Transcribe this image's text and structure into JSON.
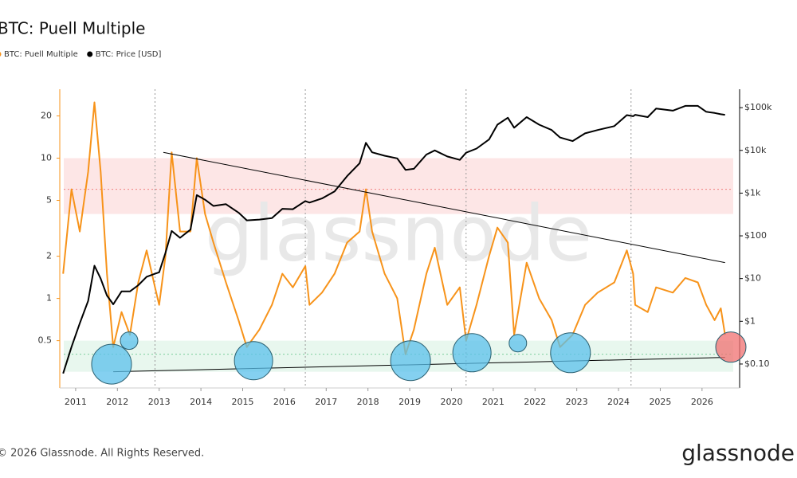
{
  "chart_data": {
    "type": "line",
    "title": "BTC: Puell Multiple",
    "footer": "© 2026 Glassnode. All Rights Reserved.",
    "logo": "glassnode",
    "watermark": "glassnode",
    "x": [
      2010.7,
      2010.9,
      2011.1,
      2011.3,
      2011.45,
      2011.6,
      2011.75,
      2011.9,
      2012.1,
      2012.3,
      2012.5,
      2012.7,
      2012.9,
      2013.0,
      2013.15,
      2013.3,
      2013.5,
      2013.75,
      2013.9,
      2014.1,
      2014.3,
      2014.6,
      2014.9,
      2015.1,
      2015.4,
      2015.7,
      2015.95,
      2016.2,
      2016.5,
      2016.6,
      2016.9,
      2017.2,
      2017.5,
      2017.8,
      2017.95,
      2018.1,
      2018.4,
      2018.7,
      2018.9,
      2019.1,
      2019.4,
      2019.6,
      2019.9,
      2020.2,
      2020.35,
      2020.6,
      2020.9,
      2021.1,
      2021.35,
      2021.5,
      2021.8,
      2022.1,
      2022.4,
      2022.6,
      2022.9,
      2023.2,
      2023.5,
      2023.9,
      2024.2,
      2024.35,
      2024.4,
      2024.7,
      2024.9,
      2025.3,
      2025.6,
      2025.9,
      2026.1,
      2026.3,
      2026.45,
      2026.55
    ],
    "series": [
      {
        "name": "BTC: Puell Multiple",
        "color": "#f7931a",
        "axis": "y",
        "values": [
          1.5,
          6,
          3,
          8,
          25,
          8,
          1.5,
          0.45,
          0.8,
          0.55,
          1.3,
          2.2,
          1.2,
          0.9,
          2,
          11,
          3,
          3,
          10,
          4,
          2.5,
          1.3,
          0.7,
          0.45,
          0.6,
          0.9,
          1.5,
          1.2,
          1.7,
          0.9,
          1.1,
          1.5,
          2.5,
          3,
          6,
          3,
          1.5,
          1.0,
          0.4,
          0.6,
          1.5,
          2.3,
          0.9,
          1.2,
          0.5,
          0.9,
          2,
          3.2,
          2.5,
          0.55,
          1.8,
          1.0,
          0.7,
          0.45,
          0.55,
          0.9,
          1.1,
          1.3,
          2.2,
          1.5,
          0.9,
          0.8,
          1.2,
          1.1,
          1.4,
          1.3,
          0.9,
          0.7,
          0.85,
          0.55
        ]
      },
      {
        "name": "BTC: Price [USD]",
        "color": "#000000",
        "axis": "y2",
        "values": [
          0.06,
          0.25,
          0.9,
          3,
          20,
          10,
          4,
          2.5,
          5,
          5,
          7,
          11,
          13,
          14,
          40,
          130,
          90,
          140,
          900,
          700,
          500,
          550,
          350,
          230,
          240,
          260,
          430,
          420,
          650,
          600,
          750,
          1100,
          2500,
          5000,
          15000,
          9000,
          7500,
          6500,
          3500,
          3700,
          8000,
          10000,
          7200,
          6000,
          8800,
          11000,
          18000,
          40000,
          58000,
          34000,
          60000,
          40000,
          30000,
          20000,
          16500,
          25000,
          30000,
          37000,
          67000,
          63000,
          68000,
          60000,
          95000,
          85000,
          110000,
          110000,
          80000,
          75000,
          70000,
          68000
        ]
      }
    ],
    "xlim": [
      2010.62,
      2026.9
    ],
    "xticks": [
      2011,
      2012,
      2013,
      2014,
      2015,
      2016,
      2017,
      2018,
      2019,
      2020,
      2021,
      2022,
      2023,
      2024,
      2025,
      2026
    ],
    "ylim": [
      0.23,
      31
    ],
    "log_y": true,
    "yticks": [
      0.5,
      1,
      2,
      5,
      10,
      20
    ],
    "y2lim": [
      0.0275,
      270000
    ],
    "log_y2": true,
    "y2ticks": [
      {
        "value": 0.1,
        "label": "$0.10"
      },
      {
        "value": 1,
        "label": "$1"
      },
      {
        "value": 10,
        "label": "$10"
      },
      {
        "value": 100,
        "label": "$100"
      },
      {
        "value": 1000,
        "label": "$1k"
      },
      {
        "value": 10000,
        "label": "$10k"
      },
      {
        "value": 100000,
        "label": "$100k"
      }
    ],
    "bands": [
      {
        "range": [
          4,
          10
        ],
        "line": 6,
        "color": "#fde0e0",
        "line_color": "#f08080"
      },
      {
        "range": [
          0.3,
          0.5
        ],
        "line": 0.4,
        "color": "#e2f5ea",
        "line_color": "#7ccf9c"
      }
    ],
    "vlines": [
      2012.9,
      2016.5,
      2020.35,
      2024.3
    ],
    "trendlines": [
      {
        "x": [
          2013.1,
          2026.55
        ],
        "y": [
          11,
          1.8
        ]
      },
      {
        "x": [
          2011.9,
          2026.55
        ],
        "y": [
          0.3,
          0.38
        ]
      }
    ],
    "highlights": [
      {
        "x": 2011.86,
        "y": 0.34,
        "color": "#5bc0eb"
      },
      {
        "x": 2012.28,
        "y": 0.5,
        "color": "#5bc0eb"
      },
      {
        "x": 2015.26,
        "y": 0.36,
        "color": "#5bc0eb"
      },
      {
        "x": 2019.02,
        "y": 0.36,
        "color": "#5bc0eb"
      },
      {
        "x": 2020.49,
        "y": 0.41,
        "color": "#5bc0eb"
      },
      {
        "x": 2021.59,
        "y": 0.48,
        "color": "#5bc0eb"
      },
      {
        "x": 2022.85,
        "y": 0.41,
        "color": "#5bc0eb"
      },
      {
        "x": 2026.69,
        "y": 0.45,
        "color": "#f07070"
      }
    ]
  }
}
